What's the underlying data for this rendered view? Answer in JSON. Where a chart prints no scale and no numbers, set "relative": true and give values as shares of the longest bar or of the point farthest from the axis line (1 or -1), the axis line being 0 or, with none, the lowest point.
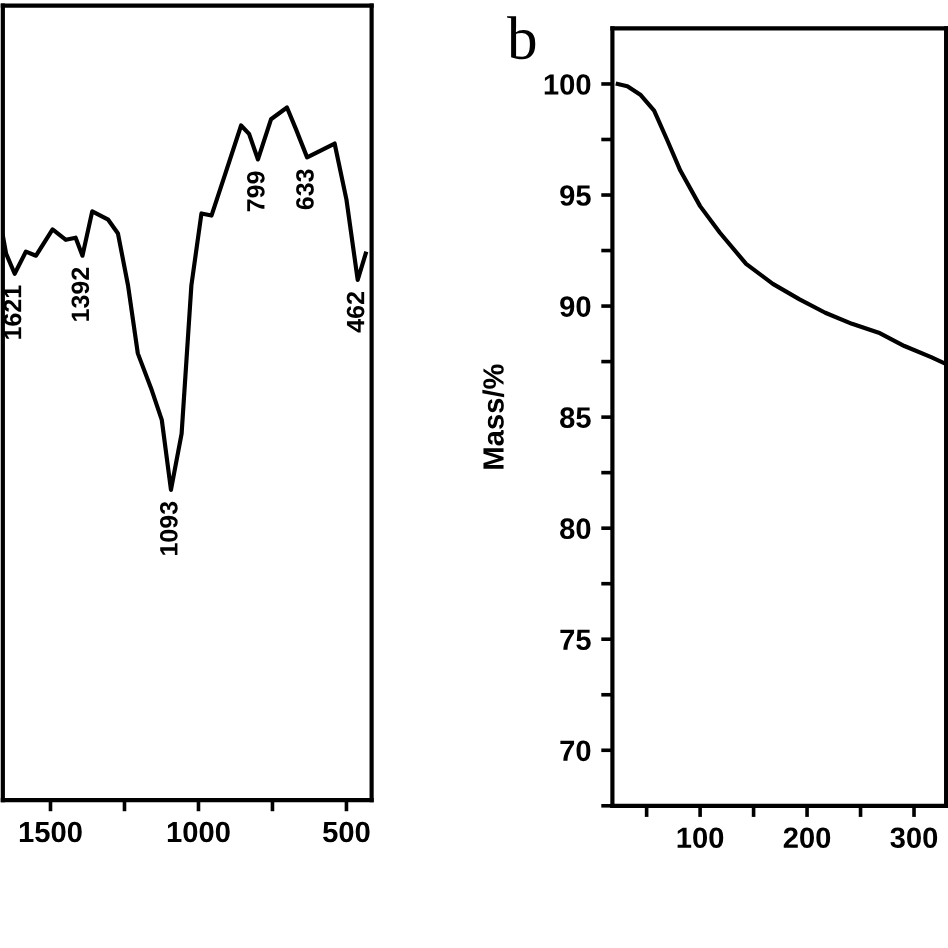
{
  "chart_data": [
    {
      "type": "line",
      "relative": true,
      "tick_labels": "x",
      "xlim": [
        1661,
        415
      ],
      "xticks": [
        1500,
        {
          "value": 1250,
          "label": null
        },
        1000,
        {
          "value": 750,
          "label": null
        },
        500
      ],
      "series": [
        {
          "color": "#000000",
          "x": [
            1661,
            1650,
            1621,
            1583,
            1549,
            1493,
            1448,
            1415,
            1392,
            1359,
            1305,
            1272,
            1238,
            1205,
            1158,
            1124,
            1093,
            1057,
            1024,
            990,
            956,
            909,
            856,
            829,
            799,
            755,
            701,
            670,
            633,
            540,
            500,
            462,
            435
          ],
          "values": [
            0.815,
            0.789,
            0.76,
            0.792,
            0.786,
            0.824,
            0.809,
            0.812,
            0.786,
            0.85,
            0.838,
            0.818,
            0.743,
            0.645,
            0.592,
            0.549,
            0.448,
            0.529,
            0.743,
            0.847,
            0.844,
            0.905,
            0.974,
            0.962,
            0.925,
            0.983,
            1,
            0.968,
            0.928,
            0.948,
            0.867,
            0.751,
            0.789
          ]
        }
      ],
      "annotations": [
        {
          "text": "1621",
          "x": 1621,
          "y": 0.76
        },
        {
          "text": "1392",
          "x": 1392,
          "y": 0.786
        },
        {
          "text": "1093",
          "x": 1093,
          "y": 0.448
        },
        {
          "text": "799",
          "x": 799,
          "y": 0.925
        },
        {
          "text": "633",
          "x": 633,
          "y": 0.928
        },
        {
          "text": "462",
          "x": 462,
          "y": 0.751
        }
      ]
    },
    {
      "type": "line",
      "title": "b",
      "ylabel": "Mass/%",
      "xlim": [
        18,
        330
      ],
      "ylim": [
        67.5,
        102.5
      ],
      "xticks": [
        {
          "value": 50,
          "label": null
        },
        100,
        {
          "value": 150,
          "label": null
        },
        200,
        {
          "value": 250,
          "label": null
        },
        300
      ],
      "yticks": [
        {
          "value": 67.5,
          "label": null
        },
        70,
        {
          "value": 72.5,
          "label": null
        },
        75,
        {
          "value": 77.5,
          "label": null
        },
        80,
        {
          "value": 82.5,
          "label": null
        },
        85,
        {
          "value": 87.5,
          "label": null
        },
        90,
        {
          "value": 92.5,
          "label": null
        },
        95,
        {
          "value": 97.5,
          "label": null
        },
        100
      ],
      "series": [
        {
          "color": "#000000",
          "x": [
            23,
            32,
            44.5,
            57,
            69,
            81.5,
            100,
            118.5,
            143,
            168,
            193,
            217,
            242,
            267,
            291,
            316,
            329.5
          ],
          "values": [
            100,
            99.9,
            99.5,
            98.8,
            97.5,
            96.1,
            94.5,
            93.3,
            91.9,
            91.0,
            90.3,
            89.7,
            89.2,
            88.8,
            88.2,
            87.7,
            87.4
          ]
        }
      ]
    }
  ]
}
